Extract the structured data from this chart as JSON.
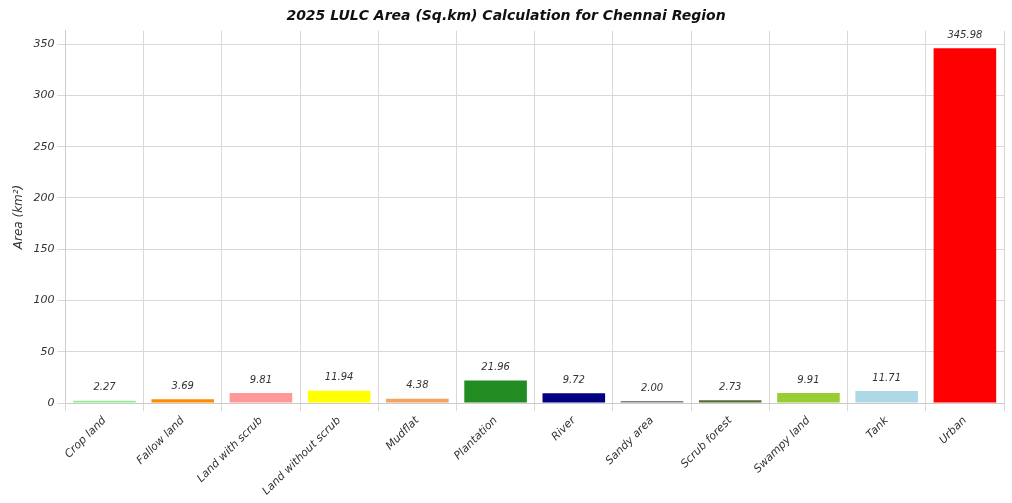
{
  "chart_data": {
    "type": "bar",
    "title": "2025 LULC Area (Sq.km) Calculation for Chennai Region",
    "ylabel": "Area (km²)",
    "categories": [
      "Crop land",
      "Fallow land",
      "Land with scrub",
      "Land without scrub",
      "Mudflat",
      "Plantation",
      "River",
      "Sandy area",
      "Scrub forest",
      "Swampy land",
      "Tank",
      "Urban"
    ],
    "values": [
      2.27,
      3.69,
      9.81,
      11.94,
      4.38,
      21.96,
      9.72,
      2.0,
      2.73,
      9.91,
      11.71,
      345.98
    ],
    "value_labels": [
      "2.27",
      "3.69",
      "9.81",
      "11.94",
      "4.38",
      "21.96",
      "9.72",
      "2.00",
      "2.73",
      "9.91",
      "11.71",
      "345.98"
    ],
    "colors": [
      "#90ee90",
      "#ff8c00",
      "#ff9999",
      "#ffff00",
      "#f4a460",
      "#228b22",
      "#000080",
      "#808080",
      "#556b2f",
      "#9acd32",
      "#add8e6",
      "#ff0000"
    ],
    "ylim": [
      0,
      363
    ],
    "yticks": [
      0,
      50,
      100,
      150,
      200,
      250,
      300,
      350
    ],
    "grid": true
  }
}
